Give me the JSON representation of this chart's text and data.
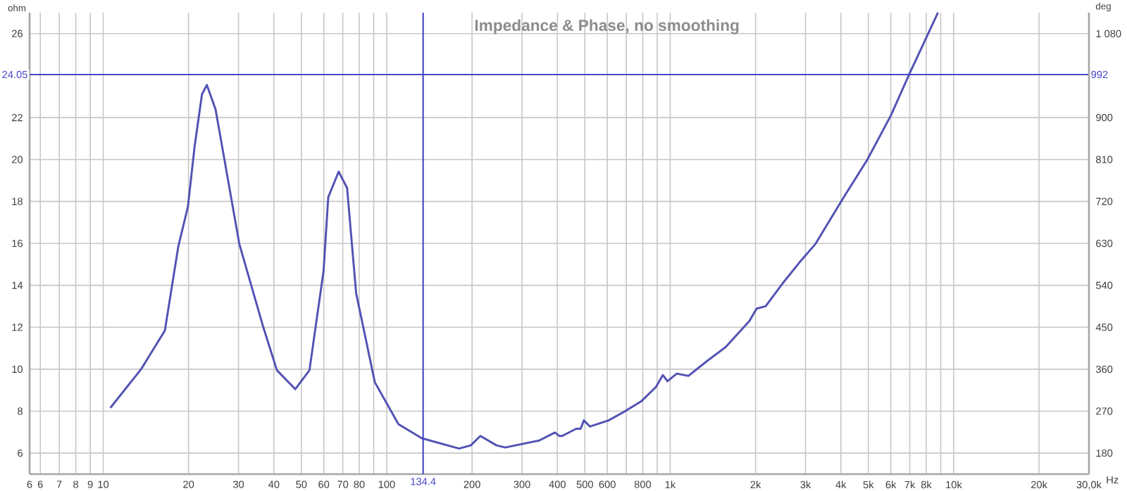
{
  "chart_data": {
    "type": "line",
    "title": "Impedance & Phase, no smoothing",
    "xlabel": "Hz",
    "ylabel": "ohm",
    "y2label": "deg",
    "x": [
      10.6,
      13.6,
      16.5,
      18.4,
      19.9,
      21,
      22.3,
      23.2,
      24.9,
      30.2,
      31.4,
      36.6,
      41.0,
      47.6,
      53.4,
      59.9,
      62.2,
      67.7,
      72.5,
      78.0,
      90.8,
      110,
      133,
      180,
      198,
      214,
      244,
      262,
      345,
      392,
      406,
      416,
      466,
      483,
      496,
      521,
      606,
      682,
      794,
      891,
      942,
      978,
      1055,
      1159,
      1349,
      1570,
      1902,
      2017,
      2171,
      2485,
      2893,
      3253,
      4089,
      4954,
      5999,
      6990,
      7846,
      8800
    ],
    "series": [
      {
        "color": "#5252b4",
        "values": [
          8.16,
          10.0,
          11.84,
          15.85,
          17.75,
          20.6,
          23.1,
          23.55,
          22.4,
          15.98,
          15.18,
          12.06,
          9.95,
          9.05,
          9.95,
          14.7,
          18.2,
          19.42,
          18.64,
          13.63,
          9.38,
          7.38,
          6.71,
          6.22,
          6.37,
          6.82,
          6.37,
          6.27,
          6.6,
          6.98,
          6.82,
          6.82,
          7.16,
          7.16,
          7.56,
          7.27,
          7.56,
          7.94,
          8.49,
          9.16,
          9.72,
          9.43,
          9.79,
          9.68,
          10.39,
          11.06,
          12.29,
          12.89,
          13.0,
          14.07,
          15.18,
          15.97,
          18.19,
          19.98,
          22.09,
          24.1,
          25.55,
          27.0
        ]
      }
    ],
    "log": "x",
    "grid": true,
    "xlim": [
      5.5,
      30000
    ],
    "xticks": [
      {
        "value": 5.5,
        "label": "6"
      },
      6,
      7,
      8,
      9,
      10,
      20,
      30,
      40,
      50,
      60,
      70,
      80,
      {
        "value": 90,
        "label": null
      },
      100,
      200,
      300,
      400,
      500,
      600,
      {
        "value": 700,
        "label": null
      },
      800,
      {
        "value": 900,
        "label": null
      },
      {
        "value": 1000,
        "label": "1k"
      },
      {
        "value": 2000,
        "label": "2k"
      },
      {
        "value": 3000,
        "label": "3k"
      },
      {
        "value": 4000,
        "label": "4k"
      },
      {
        "value": 5000,
        "label": "5k"
      },
      {
        "value": 6000,
        "label": "6k"
      },
      {
        "value": 7000,
        "label": "7k"
      },
      {
        "value": 8000,
        "label": "8k"
      },
      {
        "value": 9000,
        "label": null
      },
      {
        "value": 10000,
        "label": "10k"
      },
      {
        "value": 20000,
        "label": "20k"
      },
      {
        "value": 30000,
        "label": "30,0k"
      }
    ],
    "ylim": [
      5,
      27
    ],
    "yticks": [
      6,
      8,
      10,
      12,
      14,
      16,
      18,
      20,
      22,
      26
    ],
    "y2lim": [
      135,
      1125
    ],
    "y2ticks": [
      180,
      270,
      360,
      450,
      540,
      630,
      720,
      810,
      900,
      {
        "value": 1080,
        "label": "1 080"
      }
    ],
    "ref_lines": [
      {
        "axis": "x",
        "value": 134.4,
        "label": "134.4",
        "color": "#4646c8"
      },
      {
        "axis": "y",
        "value": 24.05,
        "label": "24.05",
        "color": "#4646c8"
      }
    ],
    "annotations": [
      "992"
    ]
  }
}
